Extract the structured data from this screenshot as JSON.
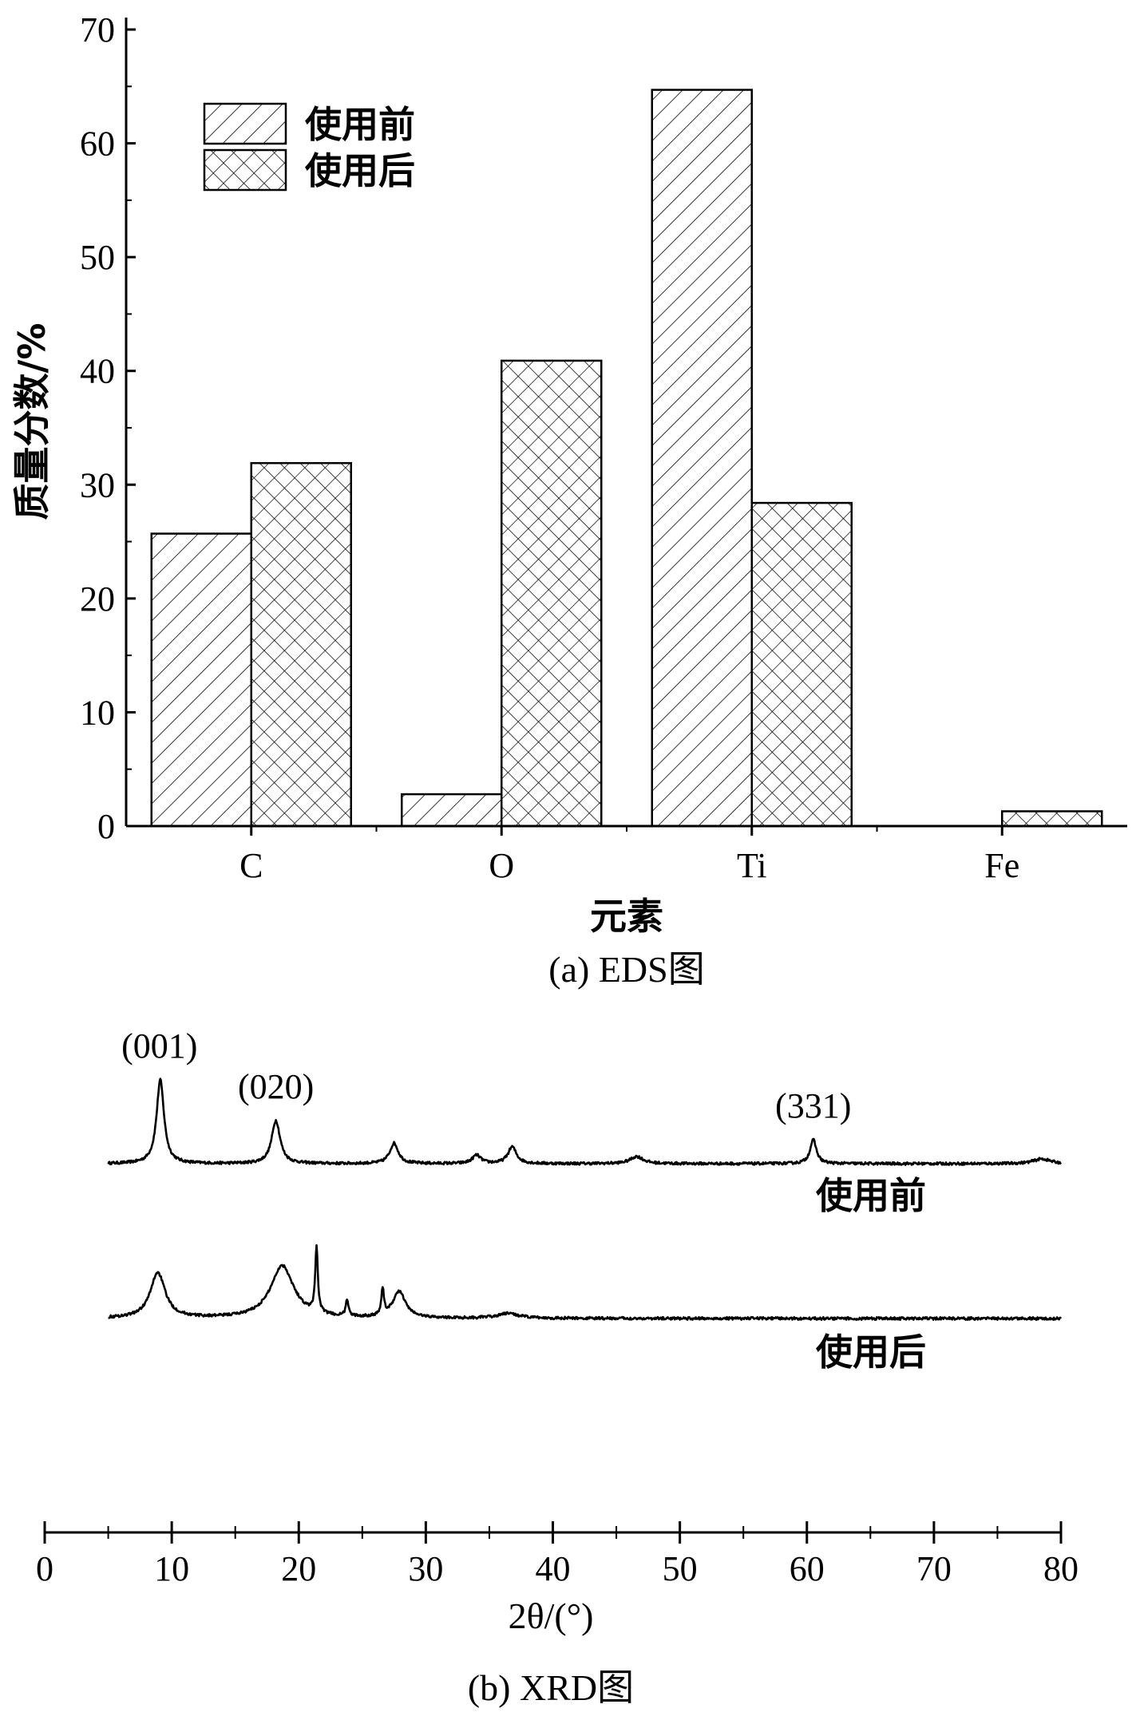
{
  "chart_data": [
    {
      "type": "bar",
      "categories": [
        "C",
        "O",
        "Ti",
        "Fe"
      ],
      "series": [
        {
          "name": "使用前",
          "values": [
            25.7,
            2.8,
            64.7,
            0
          ],
          "pattern": "diagonal-hatch"
        },
        {
          "name": "使用后",
          "values": [
            31.9,
            40.9,
            28.4,
            1.3
          ],
          "pattern": "cross-hatch"
        }
      ],
      "xlabel": "元素",
      "ylabel": "质量分数/%",
      "ylim": [
        0,
        70
      ],
      "yticks": [
        0,
        10,
        20,
        30,
        40,
        50,
        60,
        70
      ],
      "legend": "top-left",
      "caption": "(a) EDS图"
    },
    {
      "type": "line",
      "xlabel": "2θ/(°)",
      "xlim": [
        0,
        80
      ],
      "xticks": [
        0,
        10,
        20,
        30,
        40,
        50,
        60,
        70,
        80
      ],
      "caption": "(b) XRD图",
      "series": [
        {
          "name": "使用前",
          "baseline": 0,
          "peaks": [
            {
              "x": 9.1,
              "height": 70,
              "width": 0.35
            },
            {
              "x": 18.2,
              "height": 36,
              "width": 0.4
            },
            {
              "x": 27.5,
              "height": 17,
              "width": 0.4
            },
            {
              "x": 34.0,
              "height": 7,
              "width": 0.4
            },
            {
              "x": 36.8,
              "height": 14,
              "width": 0.4
            },
            {
              "x": 46.6,
              "height": 6,
              "width": 0.6
            },
            {
              "x": 60.5,
              "height": 20,
              "width": 0.3
            },
            {
              "x": 78.5,
              "height": 4,
              "width": 0.8
            }
          ]
        },
        {
          "name": "使用后",
          "baseline": 0,
          "peaks": [
            {
              "x": 8.9,
              "height": 38,
              "width": 0.7
            },
            {
              "x": 18.7,
              "height": 44,
              "width": 1.1
            },
            {
              "x": 21.4,
              "height": 55,
              "width": 0.12
            },
            {
              "x": 23.8,
              "height": 14,
              "width": 0.12
            },
            {
              "x": 26.6,
              "height": 22,
              "width": 0.12
            },
            {
              "x": 27.9,
              "height": 22,
              "width": 0.6
            },
            {
              "x": 36.5,
              "height": 4,
              "width": 1.0
            }
          ]
        }
      ],
      "peak_labels": [
        {
          "text": "(001)",
          "x": 9.1
        },
        {
          "text": "(020)",
          "x": 18.2
        },
        {
          "text": "(331)",
          "x": 60.5
        }
      ]
    }
  ]
}
